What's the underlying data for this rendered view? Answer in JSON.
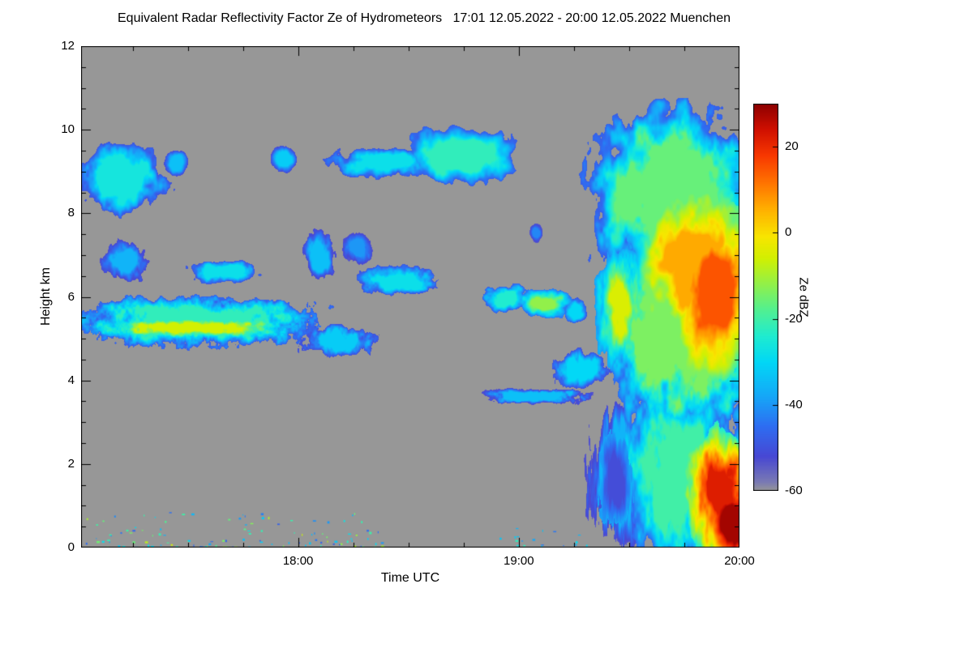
{
  "title": "Equivalent Radar Reflectivity Factor Ze of Hydrometeors   17:01 12.05.2022 - 20:00 12.05.2022 Muenchen",
  "chart_data": {
    "type": "heatmap",
    "title": "Equivalent Radar Reflectivity Factor Ze of Hydrometeors   17:01 12.05.2022 - 20:00 12.05.2022 Muenchen",
    "station": "Muenchen",
    "time_start": "17:01 12.05.2022",
    "time_end": "20:00 12.05.2022",
    "xlabel": "Time UTC",
    "ylabel": "Height km",
    "colorbar_label": "Ze dBZ",
    "x_range": [
      17.0167,
      20.0
    ],
    "y_range": [
      0,
      12
    ],
    "value_range": [
      -60,
      30
    ],
    "x_ticks": [
      {
        "value": 18,
        "label": "18:00"
      },
      {
        "value": 19,
        "label": "19:00"
      },
      {
        "value": 20,
        "label": "20:00"
      }
    ],
    "x_minor_step": 0.25,
    "y_ticks": [
      {
        "value": 0,
        "label": "0"
      },
      {
        "value": 2,
        "label": "2"
      },
      {
        "value": 4,
        "label": "4"
      },
      {
        "value": 6,
        "label": "6"
      },
      {
        "value": 8,
        "label": "8"
      },
      {
        "value": 10,
        "label": "10"
      },
      {
        "value": 12,
        "label": "12"
      }
    ],
    "y_minor_step": 0.5,
    "colorbar_ticks": [
      {
        "value": 20,
        "label": "20"
      },
      {
        "value": 0,
        "label": "0"
      },
      {
        "value": -20,
        "label": "-20"
      },
      {
        "value": -40,
        "label": "-40"
      },
      {
        "value": -60,
        "label": "-60"
      }
    ],
    "background_color": "#979797",
    "colormap": [
      [
        -60,
        "#979797"
      ],
      [
        -58,
        "#7b7bb4"
      ],
      [
        -52,
        "#4848d4"
      ],
      [
        -45,
        "#2e6ef2"
      ],
      [
        -38,
        "#16a8f8"
      ],
      [
        -30,
        "#02d8f6"
      ],
      [
        -24,
        "#20ecd0"
      ],
      [
        -18,
        "#52f092"
      ],
      [
        -12,
        "#92f04a"
      ],
      [
        -6,
        "#d2f002"
      ],
      [
        -1,
        "#f8e600"
      ],
      [
        5,
        "#ffb400"
      ],
      [
        12,
        "#ff7000"
      ],
      [
        18,
        "#f83800"
      ],
      [
        24,
        "#d01000"
      ],
      [
        30,
        "#8c0000"
      ]
    ],
    "features": [
      {
        "name": "cirrus-left",
        "t0": 17.02,
        "t1": 17.4,
        "h0": 8.0,
        "h1": 9.65,
        "core": -26,
        "edge": -50,
        "p": 2.2,
        "fuzz": 0.85,
        "nt": 16,
        "nh": 2.2,
        "seed": 11
      },
      {
        "name": "cirrus-left-frag",
        "t0": 17.4,
        "t1": 17.5,
        "h0": 8.9,
        "h1": 9.5,
        "core": -34,
        "edge": -52,
        "p": 2.0,
        "fuzz": 0.7,
        "nt": 20,
        "nh": 3,
        "seed": 12
      },
      {
        "name": "cirrus-small",
        "t0": 17.88,
        "t1": 17.99,
        "h0": 8.95,
        "h1": 9.6,
        "core": -32,
        "edge": -52,
        "p": 2.0,
        "fuzz": 0.6,
        "nt": 25,
        "nh": 3,
        "seed": 13
      },
      {
        "name": "cirrus-mid-a",
        "t0": 18.17,
        "t1": 18.62,
        "h0": 8.85,
        "h1": 9.55,
        "core": -28,
        "edge": -50,
        "p": 2.6,
        "fuzz": 0.8,
        "nt": 18,
        "nh": 3,
        "seed": 14
      },
      {
        "name": "cirrus-mid-b",
        "t0": 18.5,
        "t1": 19.0,
        "h0": 8.7,
        "h1": 10.1,
        "core": -22,
        "edge": -48,
        "p": 2.4,
        "fuzz": 0.7,
        "nt": 14,
        "nh": 2,
        "seed": 15
      },
      {
        "name": "alto-1",
        "t0": 17.1,
        "t1": 17.33,
        "h0": 6.4,
        "h1": 7.3,
        "core": -36,
        "edge": -53,
        "p": 2.0,
        "fuzz": 0.8,
        "nt": 25,
        "nh": 3,
        "seed": 16
      },
      {
        "name": "alto-2",
        "t0": 17.5,
        "t1": 17.82,
        "h0": 6.35,
        "h1": 6.85,
        "core": -28,
        "edge": -50,
        "p": 2.6,
        "fuzz": 0.7,
        "nt": 22,
        "nh": 4,
        "seed": 17
      },
      {
        "name": "alto-3",
        "t0": 18.03,
        "t1": 18.17,
        "h0": 6.4,
        "h1": 7.6,
        "core": -34,
        "edge": -53,
        "p": 2.0,
        "fuzz": 0.8,
        "nt": 25,
        "nh": 2.5,
        "seed": 18
      },
      {
        "name": "alto-4",
        "t0": 18.2,
        "t1": 18.33,
        "h0": 6.75,
        "h1": 7.5,
        "core": -40,
        "edge": -54,
        "p": 2.0,
        "fuzz": 0.8,
        "nt": 28,
        "nh": 3,
        "seed": 19
      },
      {
        "name": "alto-5",
        "t0": 18.28,
        "t1": 18.62,
        "h0": 6.0,
        "h1": 6.7,
        "core": -28,
        "edge": -50,
        "p": 2.4,
        "fuzz": 0.75,
        "nt": 22,
        "nh": 4,
        "seed": 20
      },
      {
        "name": "alto-6",
        "t0": 18.84,
        "t1": 19.05,
        "h0": 5.65,
        "h1": 6.3,
        "core": -24,
        "edge": -48,
        "p": 2.2,
        "fuzz": 0.7,
        "nt": 20,
        "nh": 4,
        "seed": 21
      },
      {
        "name": "alto-7",
        "t0": 19.0,
        "t1": 19.24,
        "h0": 5.5,
        "h1": 6.2,
        "core": -12,
        "edge": -45,
        "p": 2.2,
        "fuzz": 0.65,
        "nt": 20,
        "nh": 4,
        "ramp": 0.55,
        "seed": 22
      },
      {
        "name": "alto-8",
        "t0": 19.2,
        "t1": 19.31,
        "h0": 5.4,
        "h1": 5.95,
        "core": -30,
        "edge": -50,
        "p": 2.0,
        "fuzz": 0.7,
        "nt": 25,
        "nh": 4,
        "seed": 23
      },
      {
        "name": "dot-high",
        "t0": 19.05,
        "t1": 19.11,
        "h0": 7.3,
        "h1": 7.75,
        "core": -42,
        "edge": -55,
        "p": 2.0,
        "fuzz": 0.5,
        "nt": 30,
        "nh": 5,
        "seed": 24
      },
      {
        "name": "band5km-env",
        "t0": 17.02,
        "t1": 18.07,
        "h0": 4.85,
        "h1": 5.95,
        "core": -22,
        "edge": -48,
        "p": 3.4,
        "fuzz": 0.7,
        "nt": 26,
        "nh": 4,
        "seed": 25
      },
      {
        "name": "band5km-core",
        "t0": 17.03,
        "t1": 18.02,
        "h0": 5.0,
        "h1": 5.52,
        "core": -6,
        "edge": -45,
        "p": 3.0,
        "fuzz": 0.55,
        "nt": 30,
        "nh": 6,
        "ramp": 0.6,
        "seed": 26
      },
      {
        "name": "band5km-tail",
        "t0": 18.02,
        "t1": 18.33,
        "h0": 4.6,
        "h1": 5.3,
        "core": -32,
        "edge": -51,
        "p": 2.2,
        "fuzz": 0.9,
        "nt": 28,
        "nh": 4,
        "seed": 27
      },
      {
        "name": "band-3km6",
        "t0": 18.85,
        "t1": 19.3,
        "h0": 3.45,
        "h1": 3.78,
        "core": -34,
        "edge": -54,
        "p": 3.6,
        "fuzz": 0.75,
        "nt": 34,
        "nh": 7,
        "seed": 28
      },
      {
        "name": "blobs-4km",
        "t0": 19.18,
        "t1": 19.4,
        "h0": 3.8,
        "h1": 4.7,
        "core": -30,
        "edge": -51,
        "p": 2.2,
        "fuzz": 0.8,
        "nt": 26,
        "nh": 3,
        "seed": 29
      },
      {
        "name": "system-anvil",
        "t0": 19.32,
        "t1": 20.08,
        "h0": 6.4,
        "h1": 10.55,
        "hcap": 10.75,
        "core": -16,
        "edge": -48,
        "p": 2.3,
        "fuzz": 0.65,
        "nt": 16,
        "nh": 1.6,
        "seed": 30
      },
      {
        "name": "system-mid",
        "t0": 19.4,
        "t1": 20.08,
        "h0": 2.8,
        "h1": 7.6,
        "core": -14,
        "edge": -46,
        "p": 2.4,
        "fuzz": 0.65,
        "nt": 18,
        "nh": 1.8,
        "seed": 31
      },
      {
        "name": "system-low",
        "t0": 19.44,
        "t1": 20.08,
        "h0": -0.3,
        "h1": 3.6,
        "core": -20,
        "edge": -46,
        "p": 2.4,
        "fuzz": 0.7,
        "nt": 22,
        "nh": 1.5,
        "seed": 32
      },
      {
        "name": "system-lead-streaks",
        "t0": 19.32,
        "t1": 19.6,
        "h0": 0.2,
        "h1": 3.3,
        "core": -36,
        "edge": -54,
        "p": 2.2,
        "fuzz": 0.9,
        "nt": 48,
        "nh": 1.0,
        "seed": 33
      },
      {
        "name": "system-darkblue-patch",
        "t0": 19.36,
        "t1": 19.52,
        "h0": 0.4,
        "h1": 2.7,
        "core": -51,
        "edge": -38,
        "mode": "over",
        "p": 2.2,
        "fuzz": 0.7,
        "nt": 40,
        "nh": 1.2,
        "seed": 34
      },
      {
        "name": "system-lead-yellow",
        "t0": 19.35,
        "t1": 19.56,
        "h0": 4.4,
        "h1": 7.2,
        "core": -5,
        "edge": -40,
        "p": 2.2,
        "fuzz": 0.65,
        "nt": 26,
        "nh": 1.6,
        "ramp": 0.6,
        "seed": 35
      },
      {
        "name": "system-orange",
        "t0": 19.5,
        "t1": 20.08,
        "h0": 4.2,
        "h1": 9.3,
        "core": 6,
        "edge": -40,
        "p": 2.3,
        "fuzz": 0.55,
        "nt": 12,
        "nh": 1.3,
        "ramp": 0.65,
        "seed": 36
      },
      {
        "name": "system-orange-deep",
        "t0": 19.7,
        "t1": 20.08,
        "h0": 3.9,
        "h1": 8.2,
        "core": 15,
        "edge": -20,
        "p": 2.3,
        "fuzz": 0.5,
        "nt": 14,
        "nh": 1.4,
        "ramp": 0.6,
        "seed": 37
      },
      {
        "name": "system-red-low",
        "t0": 19.76,
        "t1": 20.08,
        "h0": -0.3,
        "h1": 2.9,
        "core": 22,
        "edge": -25,
        "p": 2.3,
        "fuzz": 0.55,
        "nt": 20,
        "nh": 1.4,
        "ramp": 0.6,
        "seed": 38
      },
      {
        "name": "system-red-core",
        "t0": 19.87,
        "t1": 20.06,
        "h0": -0.3,
        "h1": 1.4,
        "core": 28,
        "edge": -5,
        "p": 2.2,
        "fuzz": 0.45,
        "nt": 18,
        "nh": 1.5,
        "ramp": 0.55,
        "seed": 39
      },
      {
        "name": "drizzle-specks",
        "style": "specks",
        "t0": 17.03,
        "t1": 18.4,
        "h0": 0.02,
        "h1": 0.85,
        "vmin": -48,
        "vmax": -6,
        "count": 130,
        "seed": 40
      },
      {
        "name": "drizzle-specks-2",
        "style": "specks",
        "t0": 18.9,
        "t1": 19.32,
        "h0": 0.03,
        "h1": 0.5,
        "vmin": -45,
        "vmax": -20,
        "count": 18,
        "seed": 41
      }
    ]
  }
}
